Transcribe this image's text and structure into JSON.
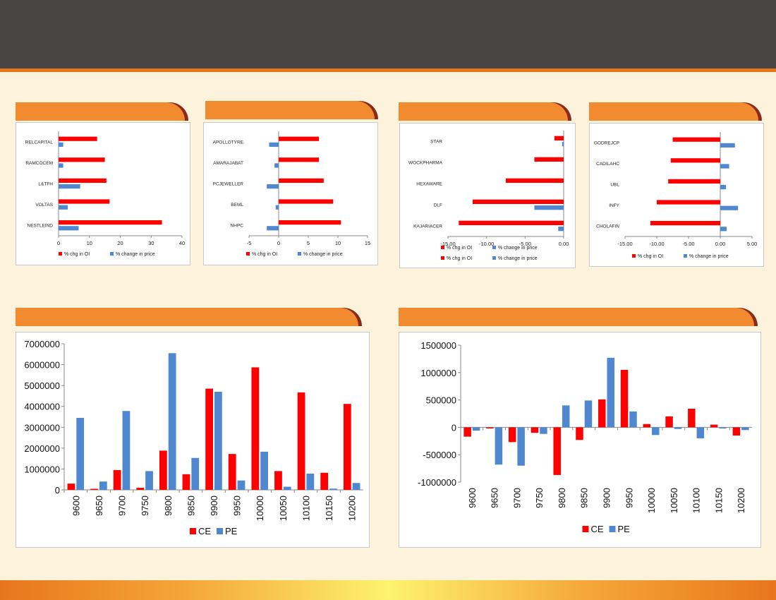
{
  "colors": {
    "oi": "#ff0000",
    "price": "#4f87d0",
    "header": "#4a4545",
    "accent": "#f28a30"
  },
  "small_legend": {
    "oi": "% chg in OI",
    "price": "% change in price"
  },
  "big_legend": {
    "ce": "CE",
    "pe": "PE"
  },
  "chart_data": [
    {
      "type": "bar",
      "orientation": "horizontal",
      "categories": [
        "NESTLEIND",
        "VOLTAS",
        "L&TFH",
        "RAMCOCEM",
        "RELCAPITAL"
      ],
      "series": [
        {
          "name": "% chg in OI",
          "values": [
            33.5,
            16.5,
            15.5,
            15,
            12.5
          ]
        },
        {
          "name": "% change in price",
          "values": [
            6.5,
            3,
            7,
            1.5,
            1.5
          ]
        }
      ],
      "xlim": [
        0,
        40
      ],
      "ticks": [
        "0",
        "10",
        "20",
        "30",
        "40"
      ],
      "legend": "bottom"
    },
    {
      "type": "bar",
      "orientation": "horizontal",
      "categories": [
        "NHPC",
        "BEML",
        "PCJEWELLER",
        "AMARAJABAT",
        "APOLLOTYRE"
      ],
      "series": [
        {
          "name": "% chg in OI",
          "values": [
            10.5,
            9.2,
            7.6,
            6.8,
            6.8
          ]
        },
        {
          "name": "% change in price",
          "values": [
            -2,
            -0.5,
            -2,
            -0.7,
            -1.6
          ]
        }
      ],
      "xlim": [
        -5,
        15
      ],
      "ticks": [
        "-5",
        "0",
        "5",
        "10",
        "15"
      ],
      "legend": "bottom"
    },
    {
      "type": "bar",
      "orientation": "horizontal",
      "categories": [
        "KAJARIACER",
        "DLF",
        "HEXAWARE",
        "WOCKPHARMA",
        "STAR"
      ],
      "series": [
        {
          "name": "% chg in OI",
          "values": [
            -13.6,
            -11.8,
            -7.5,
            -3.8,
            -1.2
          ]
        },
        {
          "name": "% change in price",
          "values": [
            -0.7,
            -3.8,
            0,
            0,
            -0.2
          ]
        }
      ],
      "xlim": [
        -15,
        0
      ],
      "ticks": [
        "-15.00",
        "-10.00",
        "-5.00",
        "0.00"
      ],
      "legend": "bottom"
    },
    {
      "type": "bar",
      "orientation": "horizontal",
      "categories": [
        "CHOLAFIN",
        "INFY",
        "UBL",
        "CADILAHC",
        "GODREJCP"
      ],
      "series": [
        {
          "name": "% chg in OI",
          "values": [
            -11,
            -10,
            -8.2,
            -7.8,
            -7.5
          ]
        },
        {
          "name": "% change in price",
          "values": [
            1,
            2.8,
            0.9,
            1.4,
            2.3
          ]
        }
      ],
      "xlim": [
        -15,
        5
      ],
      "ticks": [
        "-15.00",
        "-10.00",
        "-5.00",
        "0.00",
        "5.00"
      ],
      "legend": "bottom"
    },
    {
      "type": "bar",
      "categories": [
        "9600",
        "9650",
        "9700",
        "9750",
        "9800",
        "9850",
        "9900",
        "9950",
        "10000",
        "10050",
        "10100",
        "10150",
        "10200"
      ],
      "series": [
        {
          "name": "CE",
          "values": [
            300000,
            50000,
            950000,
            100000,
            1880000,
            750000,
            4850000,
            1720000,
            5870000,
            900000,
            4670000,
            820000,
            4120000
          ]
        },
        {
          "name": "PE",
          "values": [
            3450000,
            400000,
            3780000,
            900000,
            6550000,
            1530000,
            4700000,
            450000,
            1830000,
            150000,
            780000,
            60000,
            330000
          ]
        }
      ],
      "ylim": [
        0,
        7000000
      ],
      "ticks": [
        "0",
        "1000000",
        "2000000",
        "3000000",
        "4000000",
        "5000000",
        "6000000",
        "7000000"
      ],
      "legend": "bottom"
    },
    {
      "type": "bar",
      "categories": [
        "9600",
        "9650",
        "9700",
        "9750",
        "9800",
        "9850",
        "9900",
        "9950",
        "10000",
        "10050",
        "10100",
        "10150",
        "10200"
      ],
      "series": [
        {
          "name": "CE",
          "values": [
            -170000,
            -20000,
            -270000,
            -100000,
            -870000,
            -230000,
            510000,
            1050000,
            60000,
            200000,
            340000,
            50000,
            -150000
          ]
        },
        {
          "name": "PE",
          "values": [
            -60000,
            -680000,
            -700000,
            -120000,
            400000,
            490000,
            1270000,
            290000,
            -140000,
            -30000,
            -200000,
            -20000,
            -50000
          ]
        }
      ],
      "ylim": [
        -1000000,
        1500000
      ],
      "ticks": [
        "-1000000",
        "-500000",
        "0",
        "500000",
        "1000000",
        "1500000"
      ],
      "legend": "bottom"
    }
  ]
}
